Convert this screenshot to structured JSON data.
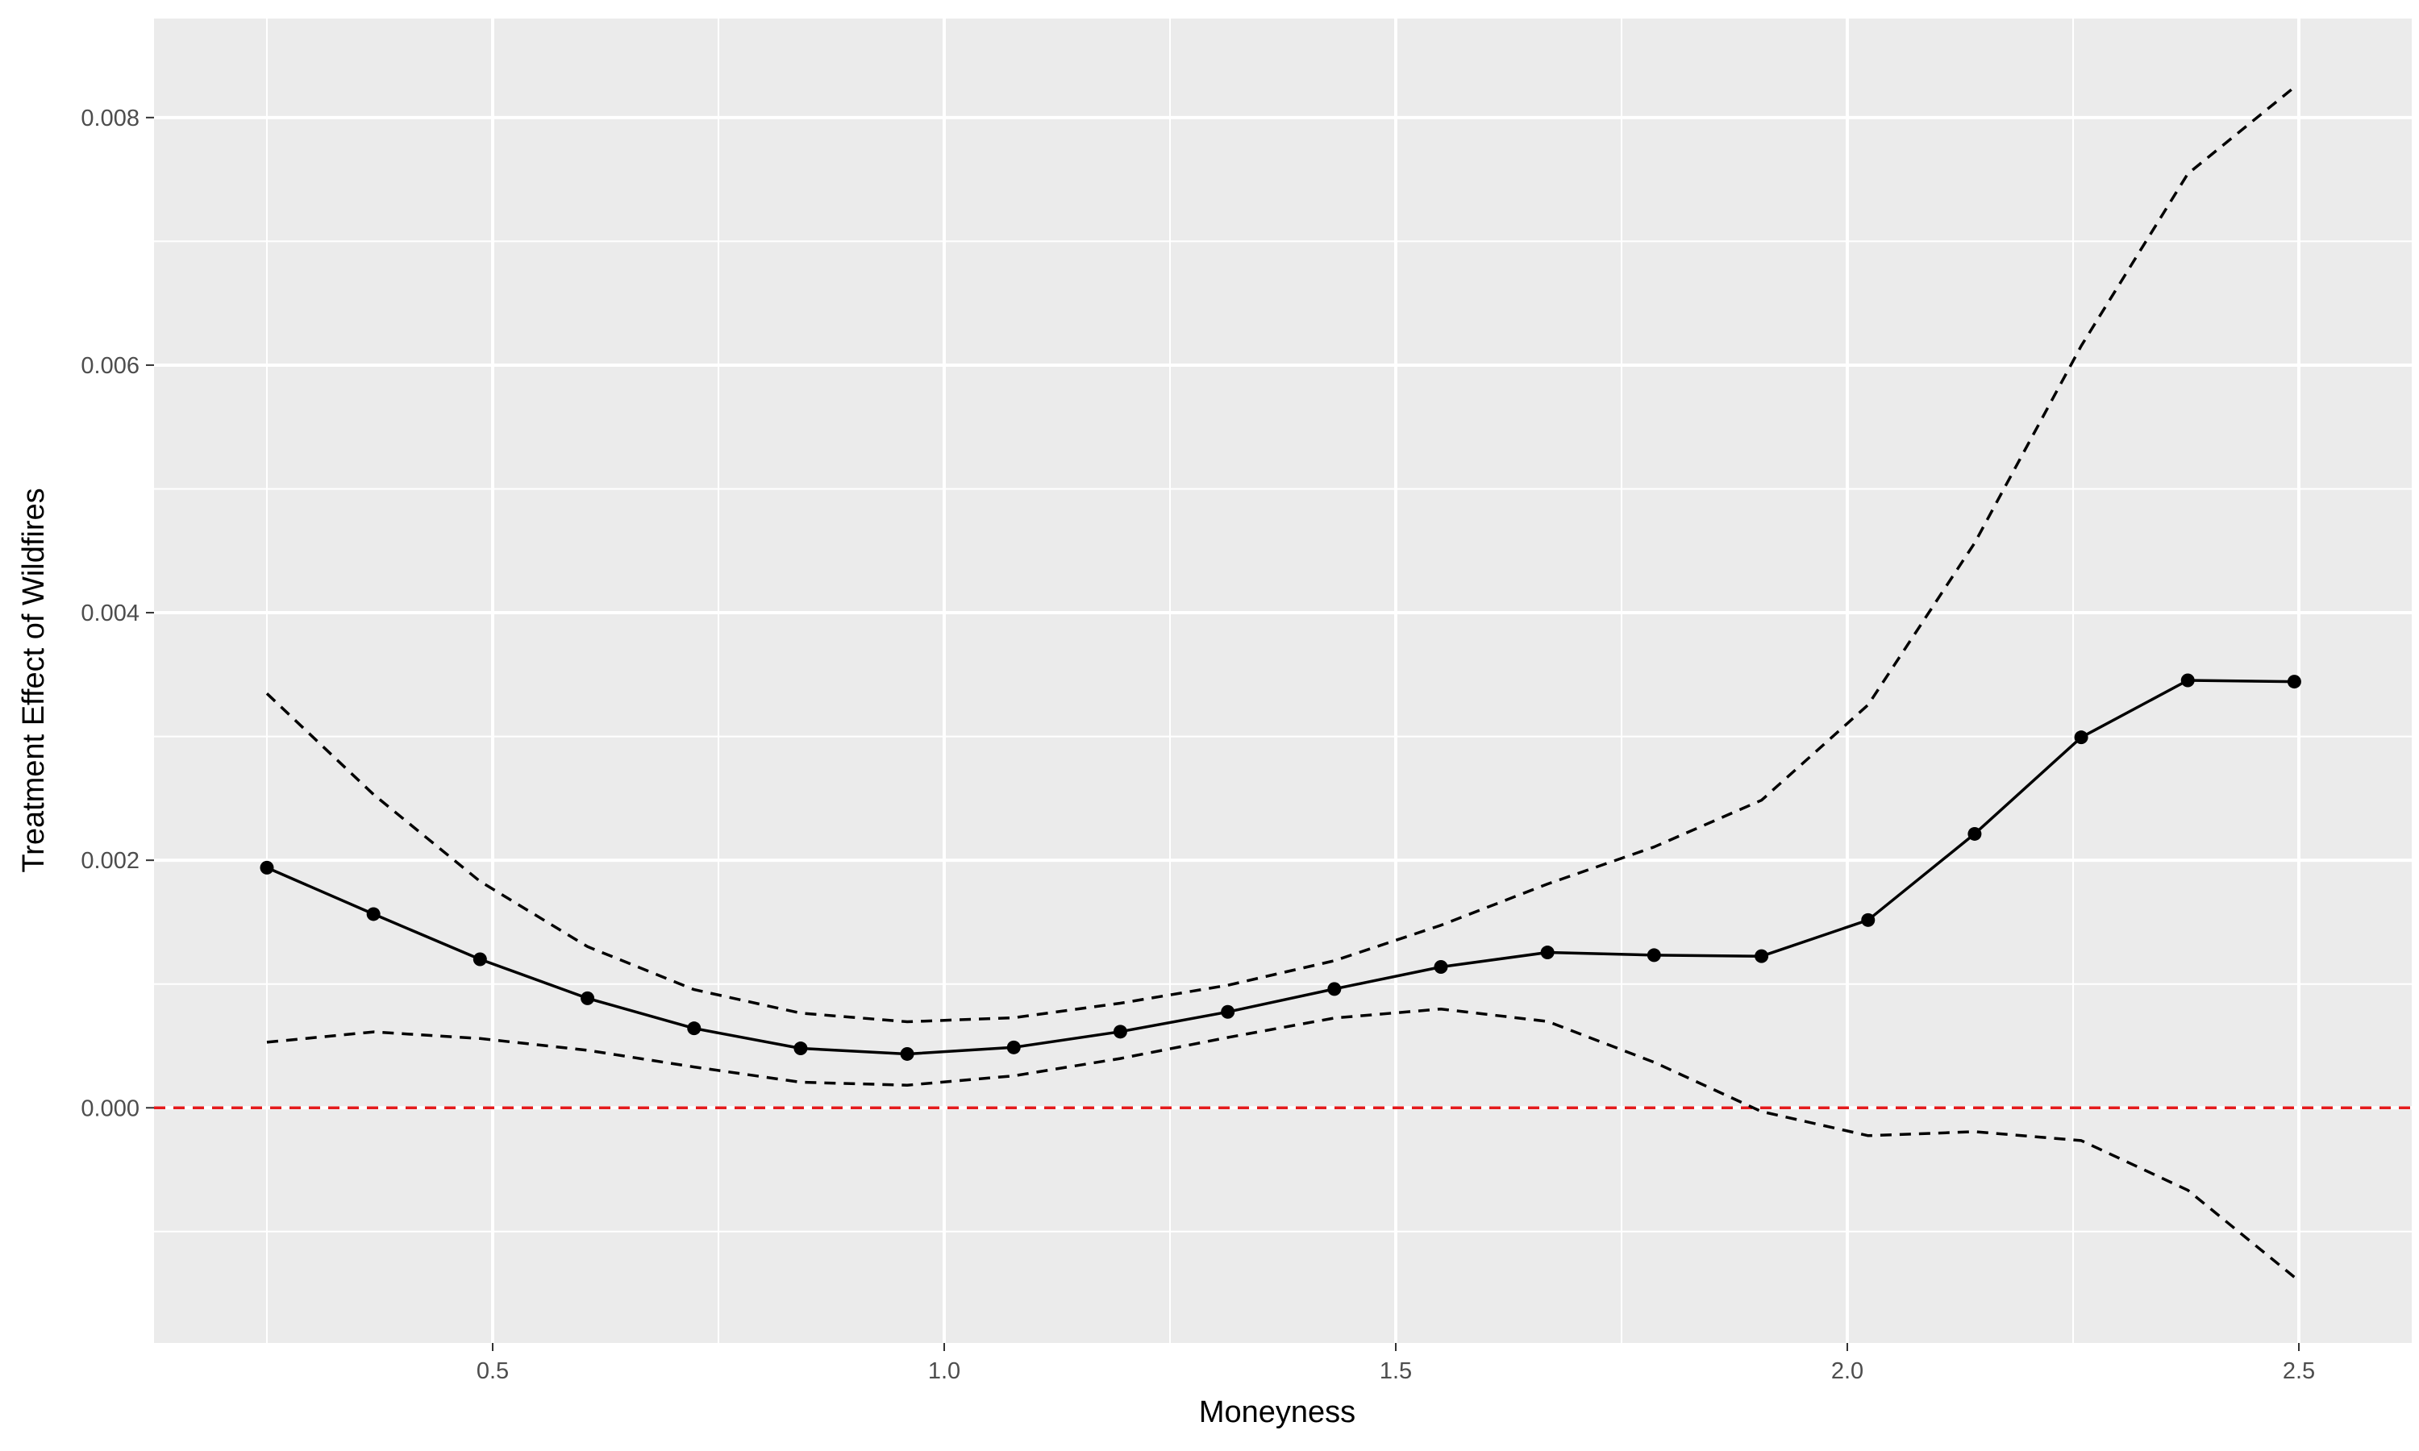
{
  "chart_data": {
    "type": "line",
    "xlabel": "Moneyness",
    "ylabel": "Treatment Effect of Wildfires",
    "xlim": [
      0.125,
      2.625
    ],
    "ylim": [
      -0.0019,
      0.0088
    ],
    "x_ticks": [
      0.5,
      1.0,
      1.5,
      2.0,
      2.5
    ],
    "x_tick_labels": [
      "0.5",
      "1.0",
      "1.5",
      "2.0",
      "2.5"
    ],
    "y_ticks": [
      0.0,
      0.002,
      0.004,
      0.006,
      0.008
    ],
    "y_tick_labels": [
      "0.000",
      "0.002",
      "0.004",
      "0.006",
      "0.008"
    ],
    "grid": true,
    "x": [
      0.25,
      0.368,
      0.486,
      0.605,
      0.723,
      0.841,
      0.959,
      1.077,
      1.195,
      1.314,
      1.432,
      1.55,
      1.668,
      1.786,
      1.905,
      2.023,
      2.141,
      2.259,
      2.377,
      2.495
    ],
    "series": [
      {
        "role": "estimate",
        "style": "solid",
        "markers": true,
        "color": "#000000",
        "values": [
          0.00194,
          0.001565,
          0.0012,
          0.000885,
          0.000642,
          0.00048,
          0.000435,
          0.000488,
          0.000615,
          0.000775,
          0.00096,
          0.001138,
          0.001255,
          0.001233,
          0.001225,
          0.001517,
          0.002213,
          0.002993,
          0.003453,
          0.003443
        ]
      },
      {
        "role": "upper-bound",
        "style": "dashed",
        "markers": false,
        "color": "#000000",
        "values": [
          0.003347,
          0.002532,
          0.00183,
          0.001302,
          0.000955,
          0.000765,
          0.000695,
          0.000728,
          0.000845,
          0.00099,
          0.001188,
          0.001475,
          0.001808,
          0.002107,
          0.002485,
          0.003255,
          0.004563,
          0.006155,
          0.007545,
          0.008245
        ]
      },
      {
        "role": "lower-bound",
        "style": "dashed",
        "markers": false,
        "color": "#000000",
        "values": [
          0.00053,
          0.000613,
          0.00056,
          0.000465,
          0.00033,
          0.000207,
          0.000183,
          0.000258,
          0.000398,
          0.000568,
          0.000725,
          0.000798,
          0.000698,
          0.000368,
          -3e-05,
          -0.000225,
          -0.000193,
          -0.000265,
          -0.000665,
          -0.001368
        ]
      }
    ],
    "reference_line": {
      "y": 0.0,
      "style": "dashed",
      "color": "#e41a1c"
    },
    "colors": {
      "panel": "#ebebeb",
      "grid": "#ffffff",
      "line": "#000000",
      "reference": "#e41a1c"
    }
  }
}
